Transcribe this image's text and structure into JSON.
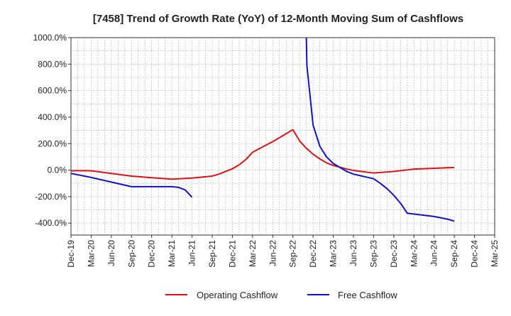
{
  "chart_data": {
    "type": "line",
    "title": "[7458]  Trend of Growth Rate (YoY) of 12-Month Moving Sum of Cashflows",
    "xlabel": "",
    "ylabel": "",
    "x_ticks": [
      "Dec-19",
      "Mar-20",
      "Jun-20",
      "Sep-20",
      "Dec-20",
      "Mar-21",
      "Jun-21",
      "Sep-21",
      "Dec-21",
      "Mar-22",
      "Jun-22",
      "Sep-22",
      "Dec-22",
      "Mar-23",
      "Jun-23",
      "Sep-23",
      "Dec-23",
      "Mar-24",
      "Jun-24",
      "Sep-24",
      "Dec-24",
      "Mar-25"
    ],
    "y_ticks": [
      "1000.0%",
      "800.0%",
      "600.0%",
      "400.0%",
      "200.0%",
      "0.0%",
      "-200.0%",
      "-400.0%"
    ],
    "y_tick_values": [
      1000,
      800,
      600,
      400,
      200,
      0,
      -200,
      -400
    ],
    "ylim": [
      -490,
      1000
    ],
    "grid": true,
    "legend_position": "bottom",
    "series": [
      {
        "name": "Operating Cashflow",
        "color": "#dd1111",
        "points": [
          [
            "Dec-19",
            -5
          ],
          [
            "Jan-20",
            -4
          ],
          [
            "Feb-20",
            -4
          ],
          [
            "Mar-20",
            -5
          ],
          [
            "Jun-20",
            -25
          ],
          [
            "Sep-20",
            -45
          ],
          [
            "Dec-20",
            -57
          ],
          [
            "Mar-21",
            -68
          ],
          [
            "Jun-21",
            -60
          ],
          [
            "Sep-21",
            -45
          ],
          [
            "Oct-21",
            -30
          ],
          [
            "Nov-21",
            -10
          ],
          [
            "Dec-21",
            10
          ],
          [
            "Jan-22",
            40
          ],
          [
            "Feb-22",
            80
          ],
          [
            "Mar-22",
            135
          ],
          [
            "Jun-22",
            215
          ],
          [
            "Sep-22",
            305
          ],
          [
            "Oct-22",
            220
          ],
          [
            "Nov-22",
            165
          ],
          [
            "Dec-22",
            120
          ],
          [
            "Jan-23",
            85
          ],
          [
            "Feb-23",
            55
          ],
          [
            "Mar-23",
            35
          ],
          [
            "Apr-23",
            22
          ],
          [
            "May-23",
            8
          ],
          [
            "Jun-23",
            -2
          ],
          [
            "Sep-23",
            -22
          ],
          [
            "Dec-23",
            -10
          ],
          [
            "Mar-24",
            8
          ],
          [
            "Jun-24",
            14
          ],
          [
            "Sep-24",
            20
          ]
        ]
      },
      {
        "name": "Free Cashflow",
        "color": "#1111cc",
        "segments": [
          [
            [
              "Dec-19",
              -25
            ],
            [
              "Mar-20",
              -55
            ],
            [
              "Jun-20",
              -90
            ],
            [
              "Sep-20",
              -125
            ],
            [
              "Dec-20",
              -125
            ],
            [
              "Mar-21",
              -125
            ],
            [
              "Apr-21",
              -130
            ],
            [
              "May-21",
              -150
            ],
            [
              "Jun-21",
              -205
            ]
          ],
          [
            [
              "Nov-22",
              1000
            ],
            [
              "Nov-22b",
              790
            ],
            [
              "Dec-22",
              340
            ],
            [
              "Jan-23",
              180
            ],
            [
              "Feb-23",
              100
            ],
            [
              "Mar-23",
              50
            ],
            [
              "Apr-23",
              20
            ],
            [
              "May-23",
              -10
            ],
            [
              "Jun-23",
              -30
            ],
            [
              "Sep-23",
              -65
            ],
            [
              "Oct-23",
              -100
            ],
            [
              "Nov-23",
              -140
            ],
            [
              "Dec-23",
              -190
            ],
            [
              "Jan-24",
              -250
            ],
            [
              "Feb-24",
              -325
            ],
            [
              "Jun-24",
              -350
            ],
            [
              "Aug-24",
              -370
            ],
            [
              "Sep-24",
              -385
            ]
          ]
        ]
      }
    ]
  }
}
